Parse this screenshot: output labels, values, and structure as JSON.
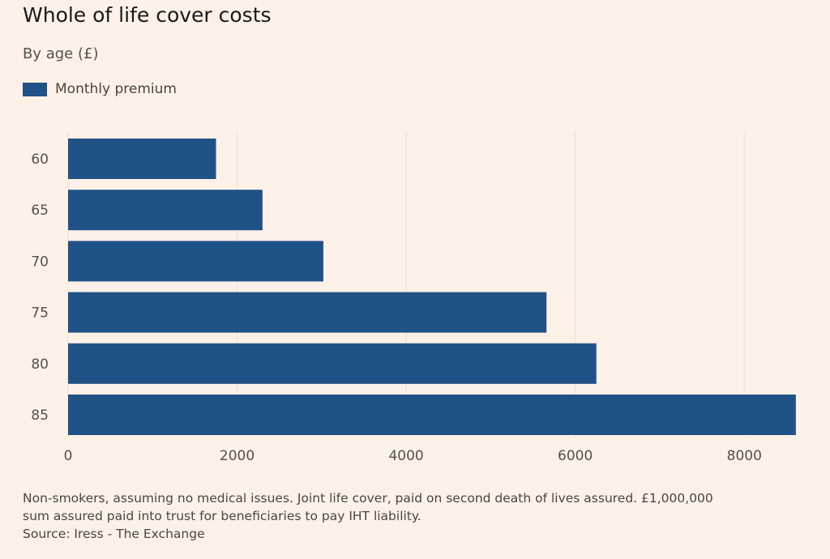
{
  "chart_data": {
    "type": "bar",
    "orientation": "horizontal",
    "title": "Whole of life cover costs",
    "subtitle": "By age (£)",
    "categories": [
      "60",
      "65",
      "70",
      "75",
      "80",
      "85"
    ],
    "series": [
      {
        "name": "Monthly premium",
        "values": [
          1750,
          2300,
          3020,
          5660,
          6250,
          8610
        ]
      }
    ],
    "xlim": [
      0,
      8640
    ],
    "xticks": [
      0,
      2000,
      4000,
      6000,
      8000
    ],
    "xlabel": "",
    "ylabel": "",
    "grid": "vertical",
    "legend_position": "top-left"
  },
  "colors": {
    "background": "#fdf1e8",
    "bar": "#215287",
    "gridline": "#ebe1d8",
    "tick_text": "#55504c"
  },
  "footnote": {
    "line1": "Non-smokers, assuming no medical issues. Joint life cover, paid on second death of lives assured. £1,000,000",
    "line2": "sum assured paid into trust for beneficiaries to pay IHT liability.",
    "source": "Source: Iress - The Exchange"
  }
}
